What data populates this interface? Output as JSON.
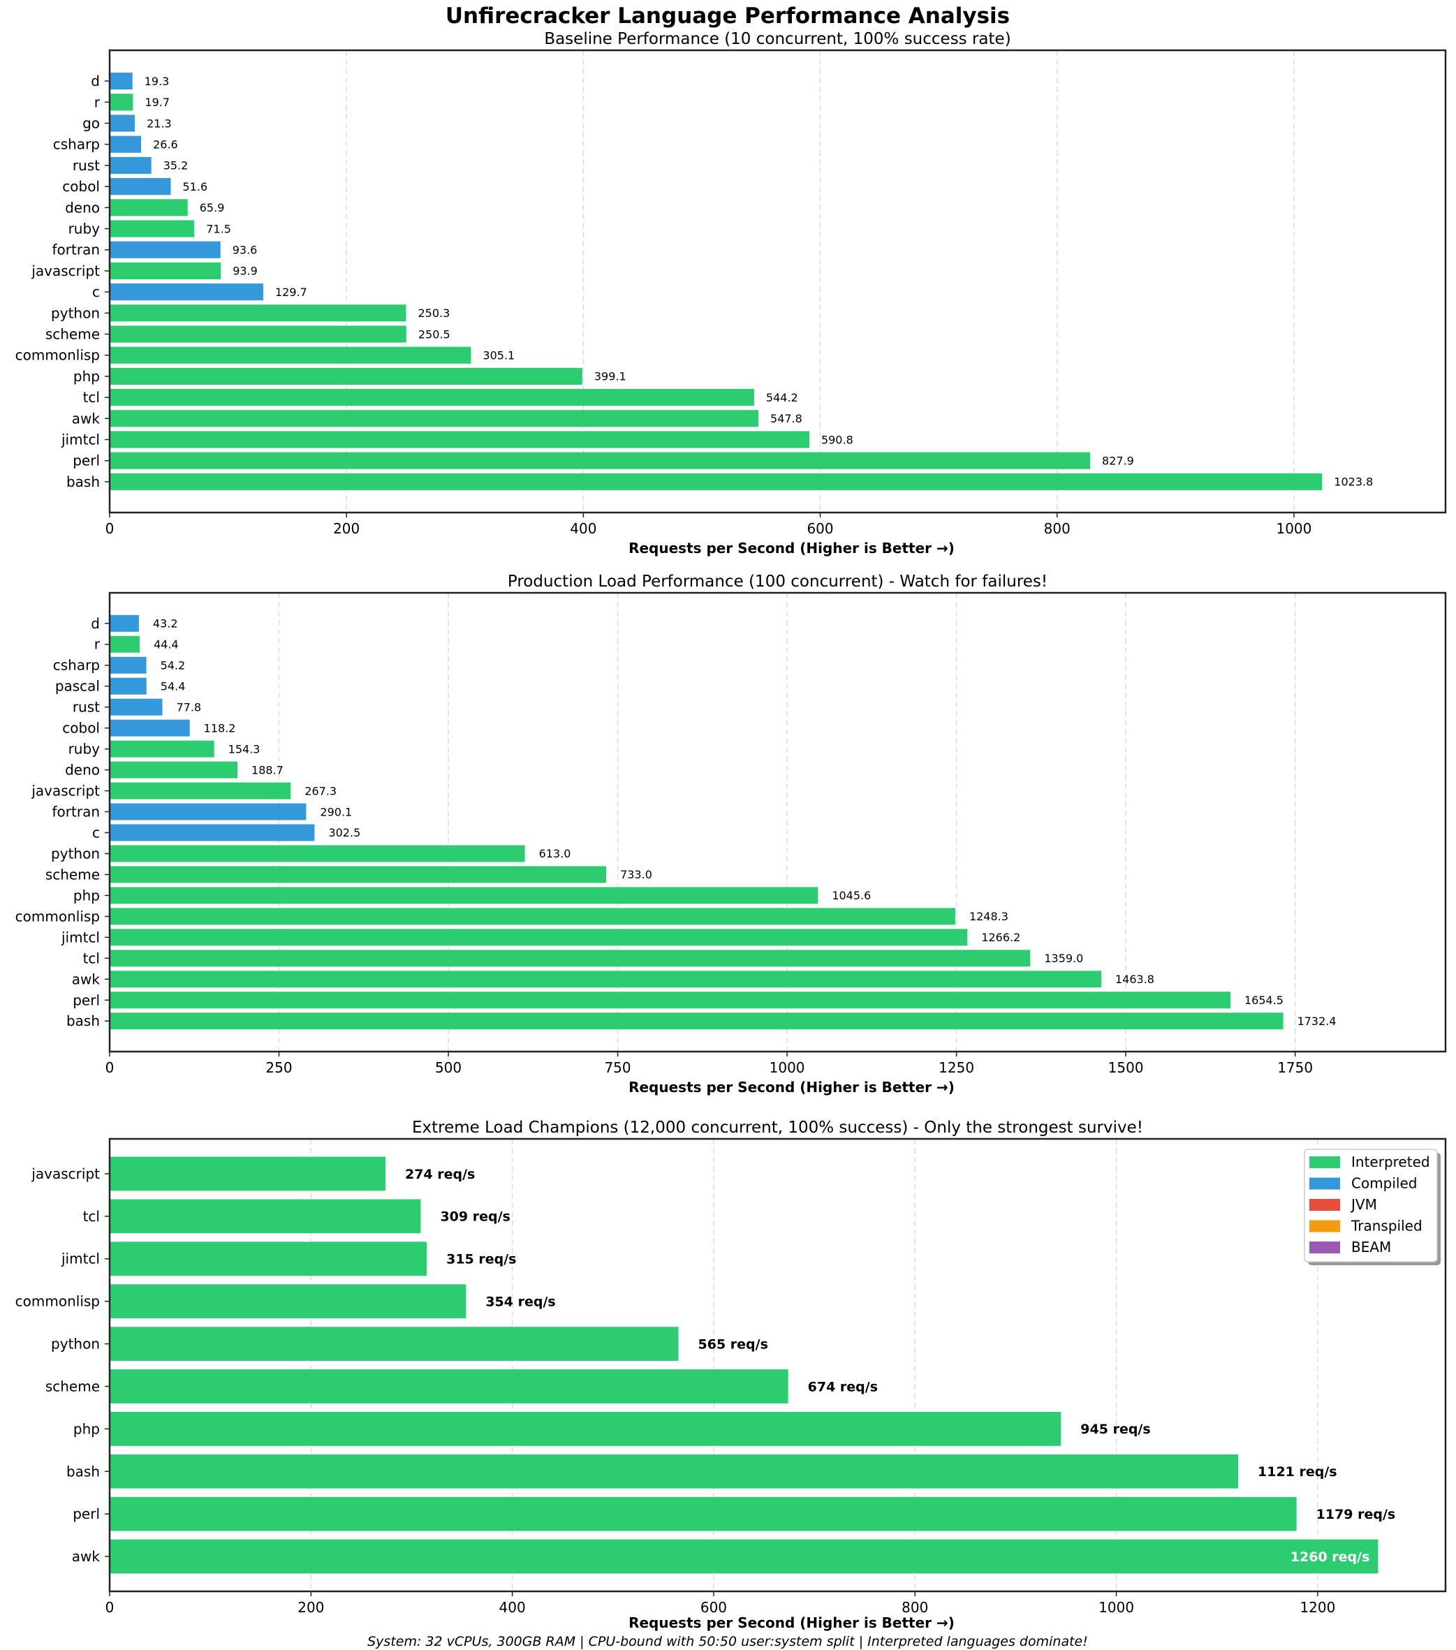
{
  "title": "Unfirecracker Language Performance Analysis",
  "footer": "System: 32 vCPUs, 300GB RAM | CPU-bound with 50:50 user:system split | Interpreted languages dominate!",
  "colors": {
    "Interpreted": "#2ecc71",
    "Compiled": "#3498db",
    "JVM": "#e74c3c",
    "Transpiled": "#f39c12",
    "BEAM": "#9b59b6"
  },
  "legend": {
    "placement": "lower-right",
    "entries": [
      "Interpreted",
      "Compiled",
      "JVM",
      "Transpiled",
      "BEAM"
    ]
  },
  "chart_data": [
    {
      "type": "bar",
      "orientation": "horizontal",
      "title": "Baseline Performance (10 concurrent, 100% success rate)",
      "xlabel": "Requests per Second (Higher is Better →)",
      "xlim": [
        0,
        1128
      ],
      "xticks": [
        0,
        200,
        400,
        600,
        800,
        1000
      ],
      "grid": "x-dashed",
      "label_format": "decimal",
      "categories": [
        "d",
        "r",
        "go",
        "csharp",
        "rust",
        "cobol",
        "deno",
        "ruby",
        "fortran",
        "javascript",
        "c",
        "python",
        "scheme",
        "commonlisp",
        "php",
        "tcl",
        "awk",
        "jimtcl",
        "perl",
        "bash"
      ],
      "values": [
        19.3,
        19.7,
        21.3,
        26.6,
        35.2,
        51.6,
        65.9,
        71.5,
        93.6,
        93.9,
        129.7,
        250.3,
        250.5,
        305.1,
        399.1,
        544.2,
        547.8,
        590.8,
        827.9,
        1023.8
      ],
      "groups": [
        "Compiled",
        "Interpreted",
        "Compiled",
        "Compiled",
        "Compiled",
        "Compiled",
        "Interpreted",
        "Interpreted",
        "Compiled",
        "Interpreted",
        "Compiled",
        "Interpreted",
        "Interpreted",
        "Interpreted",
        "Interpreted",
        "Interpreted",
        "Interpreted",
        "Interpreted",
        "Interpreted",
        "Interpreted"
      ]
    },
    {
      "type": "bar",
      "orientation": "horizontal",
      "title": "Production Load Performance (100 concurrent) - Watch for failures!",
      "xlabel": "Requests per Second (Higher is Better →)",
      "xlim": [
        0,
        1972
      ],
      "xticks": [
        0,
        250,
        500,
        750,
        1000,
        1250,
        1500,
        1750
      ],
      "grid": "x-dashed",
      "label_format": "decimal",
      "categories": [
        "d",
        "r",
        "csharp",
        "pascal",
        "rust",
        "cobol",
        "ruby",
        "deno",
        "javascript",
        "fortran",
        "c",
        "python",
        "scheme",
        "php",
        "commonlisp",
        "jimtcl",
        "tcl",
        "awk",
        "perl",
        "bash"
      ],
      "values": [
        43.2,
        44.4,
        54.2,
        54.4,
        77.8,
        118.2,
        154.3,
        188.7,
        267.3,
        290.1,
        302.5,
        613.0,
        733.0,
        1045.6,
        1248.3,
        1266.2,
        1359.0,
        1463.8,
        1654.5,
        1732.4
      ],
      "groups": [
        "Compiled",
        "Interpreted",
        "Compiled",
        "Compiled",
        "Compiled",
        "Compiled",
        "Interpreted",
        "Interpreted",
        "Interpreted",
        "Compiled",
        "Compiled",
        "Interpreted",
        "Interpreted",
        "Interpreted",
        "Interpreted",
        "Interpreted",
        "Interpreted",
        "Interpreted",
        "Interpreted",
        "Interpreted"
      ]
    },
    {
      "type": "bar",
      "orientation": "horizontal",
      "title": "Extreme Load Champions (12,000 concurrent, 100% success) - Only the strongest survive!",
      "xlabel": "Requests per Second (Higher is Better →)",
      "xlim": [
        0,
        1327
      ],
      "xticks": [
        0,
        200,
        400,
        600,
        800,
        1000,
        1200
      ],
      "grid": "x-dashed",
      "label_format": "req/s",
      "categories": [
        "javascript",
        "tcl",
        "jimtcl",
        "commonlisp",
        "python",
        "scheme",
        "php",
        "bash",
        "perl",
        "awk"
      ],
      "values": [
        274,
        309,
        315,
        354,
        565,
        674,
        945,
        1121,
        1179,
        1260
      ],
      "groups": [
        "Interpreted",
        "Interpreted",
        "Interpreted",
        "Interpreted",
        "Interpreted",
        "Interpreted",
        "Interpreted",
        "Interpreted",
        "Interpreted",
        "Interpreted"
      ]
    }
  ]
}
